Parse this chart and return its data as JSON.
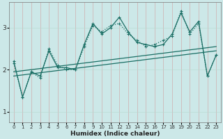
{
  "xlabel": "Humidex (Indice chaleur)",
  "bg_color": "#cce8e8",
  "line_color": "#1a6e64",
  "xlim": [
    -0.5,
    23.5
  ],
  "ylim": [
    0.75,
    3.6
  ],
  "yticks": [
    1,
    2,
    3
  ],
  "xticks": [
    0,
    1,
    2,
    3,
    4,
    5,
    6,
    7,
    8,
    9,
    10,
    11,
    12,
    13,
    14,
    15,
    16,
    17,
    18,
    19,
    20,
    21,
    22,
    23
  ],
  "series1_x": [
    0,
    1,
    2,
    3,
    4,
    5,
    6,
    7,
    8,
    9,
    10,
    11,
    12,
    13,
    14,
    15,
    16,
    17,
    18,
    19,
    20,
    21,
    22,
    23
  ],
  "series1_y": [
    2.2,
    1.35,
    1.95,
    1.85,
    2.45,
    2.05,
    2.05,
    2.0,
    2.6,
    3.1,
    2.85,
    3.0,
    3.25,
    2.9,
    2.65,
    2.6,
    2.55,
    2.6,
    2.85,
    3.35,
    2.9,
    3.15,
    1.85,
    2.35
  ],
  "series2_x": [
    0,
    1,
    2,
    3,
    4,
    5,
    6,
    7,
    8,
    9,
    10,
    11,
    12,
    13,
    14,
    15,
    16,
    17,
    18,
    19,
    20,
    21,
    22,
    23
  ],
  "series2_y": [
    2.15,
    1.35,
    1.95,
    1.8,
    2.5,
    2.1,
    2.0,
    2.0,
    2.55,
    3.05,
    2.9,
    3.05,
    3.1,
    2.85,
    2.7,
    2.55,
    2.6,
    2.7,
    2.8,
    3.4,
    2.85,
    3.1,
    1.85,
    2.35
  ],
  "trend1_x": [
    0,
    23
  ],
  "trend1_y": [
    1.95,
    2.55
  ],
  "trend2_x": [
    0,
    23
  ],
  "trend2_y": [
    1.85,
    2.45
  ]
}
